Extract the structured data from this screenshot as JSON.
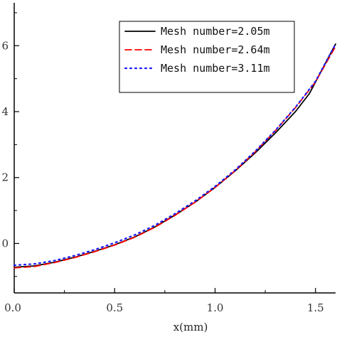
{
  "chart_data": {
    "type": "line",
    "title": "",
    "xlabel": "x(mm)",
    "ylabel": "",
    "xlim": [
      0.0,
      1.6
    ],
    "ylim": [
      -1.5,
      7.3
    ],
    "x_ticks": [
      "0.0",
      "0.5",
      "1.0",
      "1.5"
    ],
    "y_ticks": [
      "0",
      "2",
      "4",
      "6"
    ],
    "grid": false,
    "legend_position": "top-right",
    "series": [
      {
        "name": "Mesh number=2.05m",
        "color": "#000000",
        "style": "solid",
        "x": [
          0.0,
          0.1,
          0.2,
          0.3,
          0.4,
          0.5,
          0.6,
          0.7,
          0.8,
          0.9,
          1.0,
          1.1,
          1.2,
          1.3,
          1.4,
          1.47,
          1.6
        ],
        "y": [
          -0.72,
          -0.68,
          -0.57,
          -0.42,
          -0.24,
          -0.04,
          0.2,
          0.5,
          0.86,
          1.25,
          1.7,
          2.2,
          2.75,
          3.35,
          4.0,
          4.55,
          6.05
        ]
      },
      {
        "name": "Mesh number=2.64m",
        "color": "#ff0000",
        "style": "dashed",
        "x": [
          0.0,
          0.1,
          0.2,
          0.3,
          0.4,
          0.5,
          0.6,
          0.7,
          0.8,
          0.9,
          1.0,
          1.1,
          1.2,
          1.3,
          1.4,
          1.5,
          1.6
        ],
        "y": [
          -0.74,
          -0.7,
          -0.58,
          -0.43,
          -0.25,
          -0.05,
          0.19,
          0.49,
          0.85,
          1.25,
          1.7,
          2.21,
          2.78,
          3.42,
          4.12,
          4.9,
          5.98
        ]
      },
      {
        "name": "Mesh number=3.11m",
        "color": "#1a1aff",
        "style": "dotted",
        "x": [
          0.0,
          0.1,
          0.2,
          0.3,
          0.4,
          0.5,
          0.6,
          0.7,
          0.8,
          0.9,
          1.0,
          1.1,
          1.2,
          1.3,
          1.4,
          1.5,
          1.6
        ],
        "y": [
          -0.66,
          -0.62,
          -0.52,
          -0.37,
          -0.19,
          0.02,
          0.26,
          0.55,
          0.9,
          1.29,
          1.73,
          2.23,
          2.8,
          3.43,
          4.13,
          4.92,
          6.05
        ]
      }
    ]
  }
}
